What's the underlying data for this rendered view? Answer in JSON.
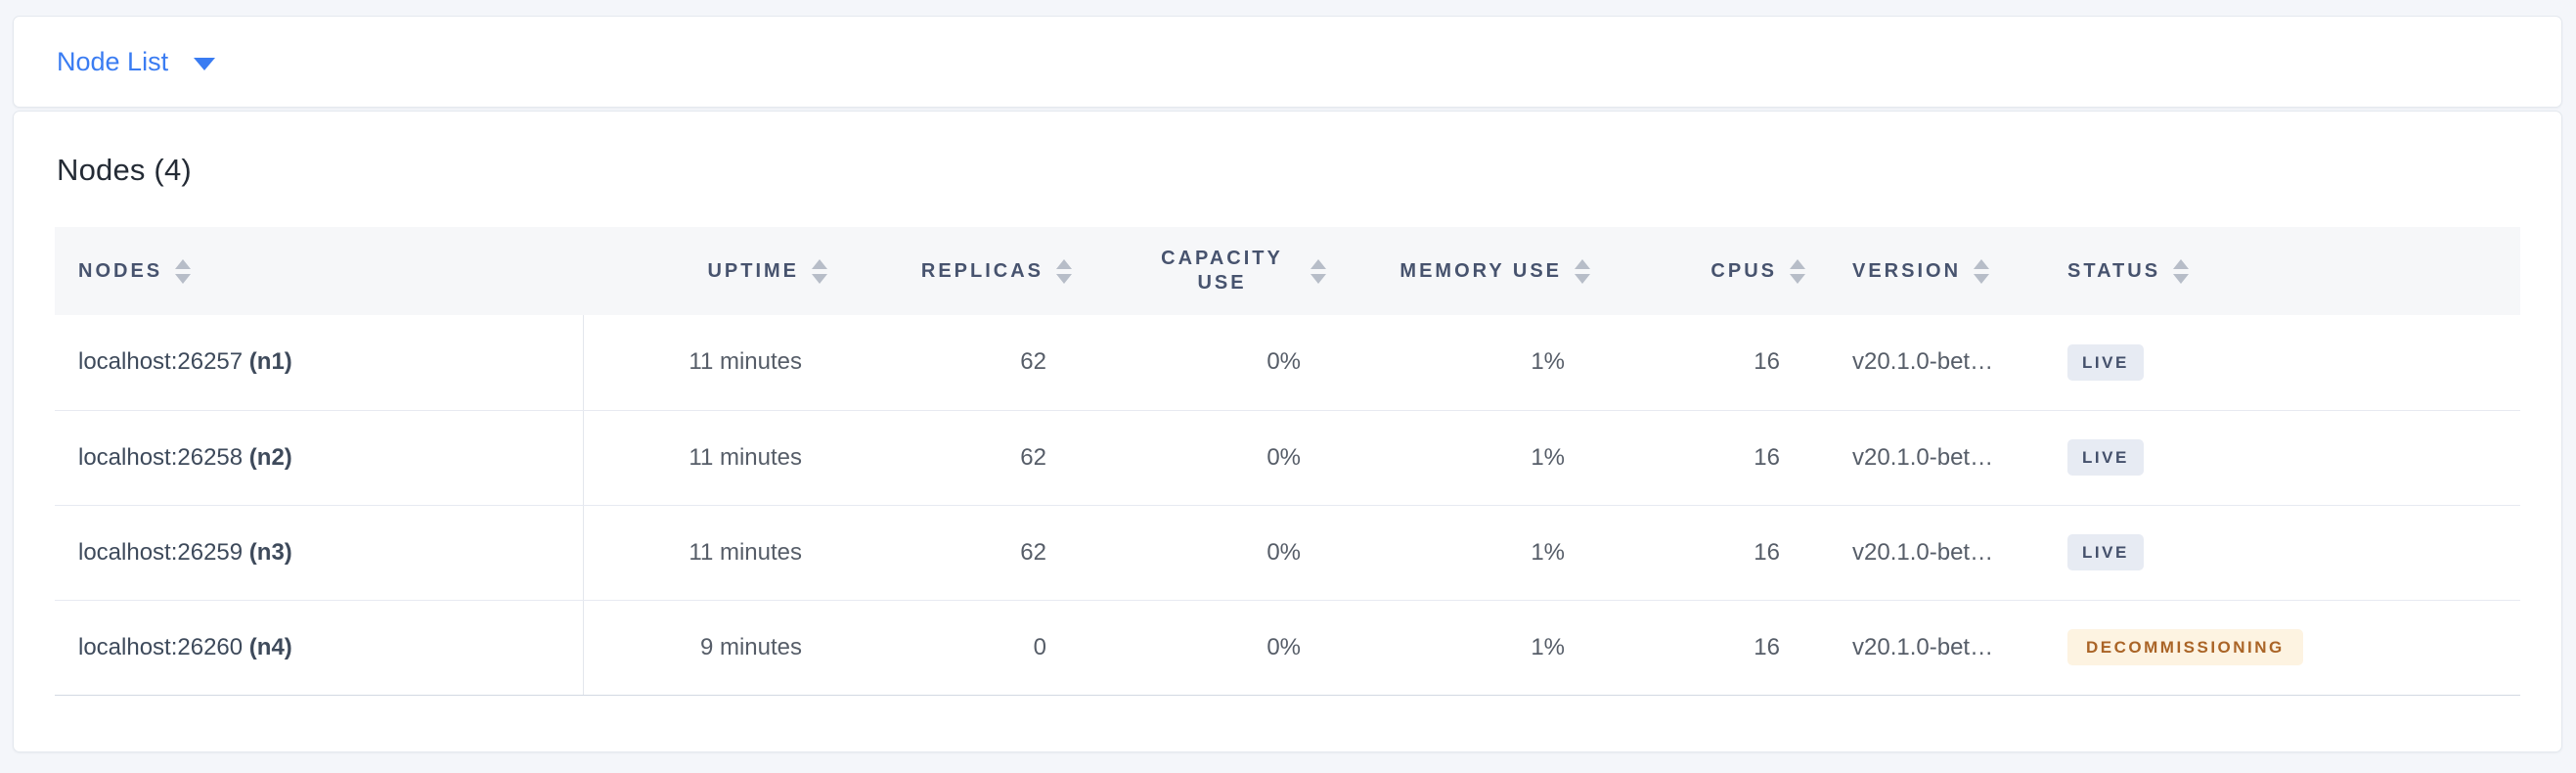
{
  "view_selector": {
    "label": "Node List",
    "icon": "caret-down"
  },
  "panel": {
    "title": "Nodes (4)"
  },
  "table": {
    "columns": [
      {
        "id": "nodes",
        "label": "NODES",
        "align": "left",
        "sortable": true
      },
      {
        "id": "uptime",
        "label": "UPTIME",
        "align": "right",
        "sortable": true
      },
      {
        "id": "replicas",
        "label": "REPLICAS",
        "align": "right",
        "sortable": true
      },
      {
        "id": "capacity_use",
        "label": "CAPACITY USE",
        "align": "right",
        "sortable": true,
        "wrap": true
      },
      {
        "id": "memory_use",
        "label": "MEMORY USE",
        "align": "right",
        "sortable": true
      },
      {
        "id": "cpus",
        "label": "CPUS",
        "align": "right",
        "sortable": true
      },
      {
        "id": "version",
        "label": "VERSION",
        "align": "left",
        "sortable": true
      },
      {
        "id": "status",
        "label": "STATUS",
        "align": "left",
        "sortable": true
      }
    ],
    "rows": [
      {
        "address": "localhost:26257",
        "id_label": "(n1)",
        "uptime": "11 minutes",
        "replicas": "62",
        "capacity_use": "0%",
        "memory_use": "1%",
        "cpus": "16",
        "version": "v20.1.0-bet…",
        "status": "LIVE",
        "status_variant": "live"
      },
      {
        "address": "localhost:26258",
        "id_label": "(n2)",
        "uptime": "11 minutes",
        "replicas": "62",
        "capacity_use": "0%",
        "memory_use": "1%",
        "cpus": "16",
        "version": "v20.1.0-bet…",
        "status": "LIVE",
        "status_variant": "live"
      },
      {
        "address": "localhost:26259",
        "id_label": "(n3)",
        "uptime": "11 minutes",
        "replicas": "62",
        "capacity_use": "0%",
        "memory_use": "1%",
        "cpus": "16",
        "version": "v20.1.0-bet…",
        "status": "LIVE",
        "status_variant": "live"
      },
      {
        "address": "localhost:26260",
        "id_label": "(n4)",
        "uptime": "9 minutes",
        "replicas": "0",
        "capacity_use": "0%",
        "memory_use": "1%",
        "cpus": "16",
        "version": "v20.1.0-bet…",
        "status": "DECOMMISSIONING",
        "status_variant": "decommissioning"
      }
    ]
  },
  "colors": {
    "page_bg": "#f4f6fa",
    "accent_blue": "#3a7cf2",
    "badge_live_bg": "#e7ebf3",
    "badge_live_text": "#44506b",
    "badge_decommissioning_bg": "#fdf3e1",
    "badge_decommissioning_text": "#aa6426"
  }
}
